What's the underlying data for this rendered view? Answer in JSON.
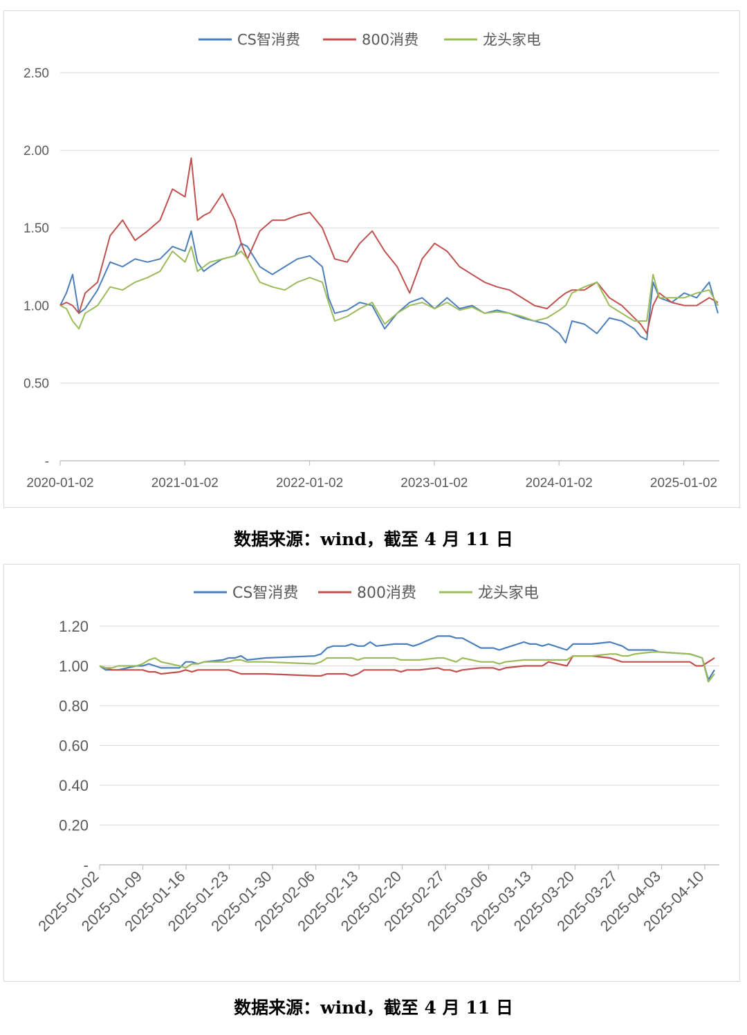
{
  "colors": {
    "cs": "#4a7ebb",
    "c800": "#c0504d",
    "leader": "#9bbb59",
    "grid": "#d9d9d9",
    "axis": "#bfbfbf",
    "text": "#595959"
  },
  "captions": {
    "top": "数据来源：wind，截至 4 月 11 日",
    "bottom": "数据来源：wind，截至 4 月 11 日"
  },
  "chart_data": [
    {
      "type": "line",
      "title": "",
      "xlabel": "",
      "ylabel": "",
      "ylim": [
        0,
        2.5
      ],
      "yticks": [
        "-",
        "0.50",
        "1.00",
        "1.50",
        "2.00",
        "2.50"
      ],
      "xticks": [
        "2020-01-02",
        "2021-01-02",
        "2022-01-02",
        "2023-01-02",
        "2024-01-02",
        "2025-01-02"
      ],
      "grid": true,
      "legend": "top-center",
      "x": [
        2020.0,
        2020.05,
        2020.1,
        2020.15,
        2020.2,
        2020.3,
        2020.4,
        2020.5,
        2020.6,
        2020.7,
        2020.8,
        2020.9,
        2021.0,
        2021.05,
        2021.1,
        2021.15,
        2021.2,
        2021.3,
        2021.4,
        2021.45,
        2021.5,
        2021.6,
        2021.7,
        2021.8,
        2021.9,
        2022.0,
        2022.1,
        2022.15,
        2022.2,
        2022.3,
        2022.4,
        2022.5,
        2022.6,
        2022.7,
        2022.8,
        2022.9,
        2023.0,
        2023.1,
        2023.2,
        2023.3,
        2023.4,
        2023.5,
        2023.6,
        2023.7,
        2023.8,
        2023.9,
        2024.0,
        2024.05,
        2024.1,
        2024.2,
        2024.3,
        2024.4,
        2024.5,
        2024.6,
        2024.65,
        2024.7,
        2024.75,
        2024.8,
        2024.9,
        2025.0,
        2025.1,
        2025.2,
        2025.27
      ],
      "series": [
        {
          "name": "CS智消费",
          "values": [
            1.0,
            1.08,
            1.2,
            0.95,
            0.98,
            1.1,
            1.28,
            1.25,
            1.3,
            1.28,
            1.3,
            1.38,
            1.35,
            1.48,
            1.28,
            1.22,
            1.25,
            1.3,
            1.32,
            1.4,
            1.38,
            1.25,
            1.2,
            1.25,
            1.3,
            1.32,
            1.25,
            1.05,
            0.95,
            0.97,
            1.02,
            1.0,
            0.85,
            0.95,
            1.02,
            1.05,
            0.98,
            1.05,
            0.98,
            1.0,
            0.95,
            0.97,
            0.95,
            0.92,
            0.9,
            0.88,
            0.82,
            0.76,
            0.9,
            0.88,
            0.82,
            0.92,
            0.9,
            0.85,
            0.8,
            0.78,
            1.15,
            1.05,
            1.02,
            1.08,
            1.05,
            1.15,
            0.95
          ]
        },
        {
          "name": "800消费",
          "values": [
            1.0,
            1.02,
            1.0,
            0.95,
            1.08,
            1.15,
            1.45,
            1.55,
            1.42,
            1.48,
            1.55,
            1.75,
            1.7,
            1.95,
            1.55,
            1.58,
            1.6,
            1.72,
            1.55,
            1.4,
            1.3,
            1.48,
            1.55,
            1.55,
            1.58,
            1.6,
            1.5,
            1.4,
            1.3,
            1.28,
            1.4,
            1.48,
            1.35,
            1.25,
            1.08,
            1.3,
            1.4,
            1.35,
            1.25,
            1.2,
            1.15,
            1.12,
            1.1,
            1.05,
            1.0,
            0.98,
            1.05,
            1.08,
            1.1,
            1.1,
            1.15,
            1.05,
            1.0,
            0.92,
            0.88,
            0.82,
            1.0,
            1.08,
            1.02,
            1.0,
            1.0,
            1.05,
            1.02
          ]
        },
        {
          "name": "龙头家电",
          "values": [
            1.0,
            0.98,
            0.9,
            0.85,
            0.95,
            1.0,
            1.12,
            1.1,
            1.15,
            1.18,
            1.22,
            1.35,
            1.28,
            1.38,
            1.22,
            1.25,
            1.28,
            1.3,
            1.32,
            1.35,
            1.3,
            1.15,
            1.12,
            1.1,
            1.15,
            1.18,
            1.15,
            1.02,
            0.9,
            0.93,
            0.98,
            1.02,
            0.88,
            0.95,
            1.0,
            1.02,
            0.98,
            1.02,
            0.97,
            0.99,
            0.95,
            0.96,
            0.95,
            0.93,
            0.9,
            0.92,
            0.97,
            1.0,
            1.08,
            1.12,
            1.15,
            1.0,
            0.95,
            0.9,
            0.9,
            0.9,
            1.2,
            1.05,
            1.05,
            1.05,
            1.08,
            1.1,
            1.0
          ]
        }
      ]
    },
    {
      "type": "line",
      "title": "",
      "xlabel": "",
      "ylabel": "",
      "ylim": [
        0,
        1.2
      ],
      "yticks": [
        "-",
        "0.20",
        "0.40",
        "0.60",
        "0.80",
        "1.00",
        "1.20"
      ],
      "xticks": [
        "2025-01-02",
        "2025-01-09",
        "2025-01-16",
        "2025-01-23",
        "2025-01-30",
        "2025-02-06",
        "2025-02-13",
        "2025-02-20",
        "2025-02-27",
        "2025-03-06",
        "2025-03-13",
        "2025-03-20",
        "2025-03-27",
        "2025-04-03",
        "2025-04-10"
      ],
      "grid": true,
      "legend": "top-center",
      "x": [
        0,
        1,
        2,
        3,
        6,
        7,
        8,
        9,
        10,
        13,
        14,
        15,
        16,
        17,
        20,
        21,
        22,
        23,
        24,
        27,
        35,
        36,
        37,
        38,
        39,
        40,
        41,
        42,
        43,
        44,
        45,
        48,
        49,
        50,
        51,
        52,
        55,
        56,
        57,
        58,
        59,
        62,
        63,
        64,
        65,
        66,
        69,
        70,
        71,
        72,
        73,
        76,
        77,
        78,
        79,
        80,
        83,
        84,
        85,
        86,
        87,
        90,
        91,
        96,
        97,
        98,
        99,
        100
      ],
      "series": [
        {
          "name": "CS智消费",
          "values": [
            1.0,
            0.98,
            0.98,
            0.98,
            1.0,
            1.0,
            1.01,
            1.0,
            0.99,
            0.99,
            1.02,
            1.02,
            1.01,
            1.02,
            1.03,
            1.04,
            1.04,
            1.05,
            1.03,
            1.04,
            1.05,
            1.06,
            1.09,
            1.1,
            1.1,
            1.1,
            1.11,
            1.1,
            1.1,
            1.12,
            1.1,
            1.11,
            1.11,
            1.11,
            1.1,
            1.11,
            1.15,
            1.15,
            1.15,
            1.14,
            1.14,
            1.09,
            1.09,
            1.09,
            1.08,
            1.09,
            1.12,
            1.11,
            1.11,
            1.1,
            1.11,
            1.08,
            1.11,
            1.11,
            1.11,
            1.11,
            1.12,
            1.11,
            1.1,
            1.08,
            1.08,
            1.08,
            1.07,
            1.06,
            1.05,
            1.04,
            0.93,
            0.98
          ]
        },
        {
          "name": "800消费",
          "values": [
            1.0,
            0.99,
            0.98,
            0.98,
            0.98,
            0.98,
            0.97,
            0.97,
            0.96,
            0.97,
            0.98,
            0.97,
            0.98,
            0.98,
            0.98,
            0.98,
            0.97,
            0.96,
            0.96,
            0.96,
            0.95,
            0.95,
            0.96,
            0.96,
            0.96,
            0.96,
            0.95,
            0.96,
            0.98,
            0.98,
            0.98,
            0.98,
            0.97,
            0.98,
            0.98,
            0.98,
            0.99,
            0.98,
            0.98,
            0.97,
            0.98,
            0.99,
            0.99,
            0.99,
            0.98,
            0.99,
            1.0,
            1.0,
            1.0,
            1.0,
            1.02,
            1.0,
            1.05,
            1.05,
            1.05,
            1.05,
            1.04,
            1.03,
            1.02,
            1.02,
            1.02,
            1.02,
            1.02,
            1.02,
            1.0,
            1.0,
            1.02,
            1.04
          ]
        },
        {
          "name": "龙头家电",
          "values": [
            1.0,
            0.99,
            0.99,
            1.0,
            1.0,
            1.01,
            1.03,
            1.04,
            1.02,
            1.0,
            0.99,
            1.01,
            1.01,
            1.02,
            1.02,
            1.02,
            1.03,
            1.03,
            1.02,
            1.02,
            1.01,
            1.02,
            1.04,
            1.04,
            1.04,
            1.04,
            1.04,
            1.03,
            1.04,
            1.04,
            1.04,
            1.04,
            1.03,
            1.03,
            1.03,
            1.03,
            1.04,
            1.04,
            1.03,
            1.02,
            1.04,
            1.02,
            1.02,
            1.02,
            1.01,
            1.02,
            1.03,
            1.03,
            1.03,
            1.03,
            1.03,
            1.03,
            1.05,
            1.05,
            1.05,
            1.05,
            1.06,
            1.06,
            1.05,
            1.05,
            1.06,
            1.07,
            1.07,
            1.06,
            1.05,
            1.04,
            0.92,
            0.96
          ]
        }
      ]
    }
  ]
}
